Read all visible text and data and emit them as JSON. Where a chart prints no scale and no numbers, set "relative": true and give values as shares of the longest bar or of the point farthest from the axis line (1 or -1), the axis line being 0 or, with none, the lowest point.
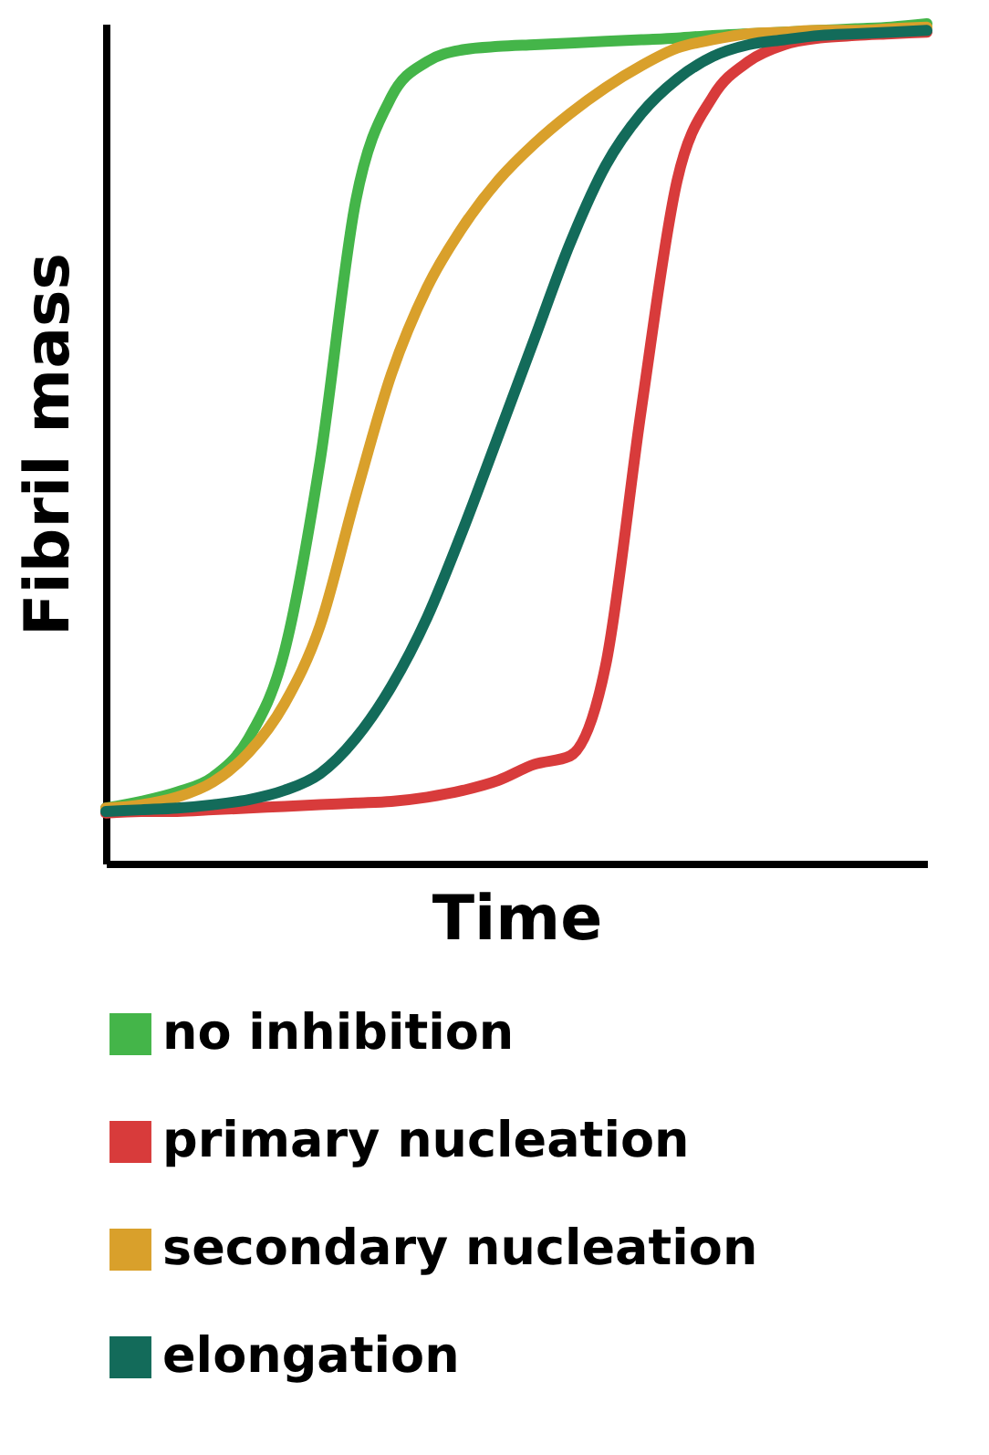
{
  "chart_data": {
    "type": "line",
    "relative": true,
    "xlabel": "Time",
    "ylabel": "Fibril mass",
    "tick_labels": false,
    "legend": "bottom",
    "marker": "none",
    "line_style": "solid",
    "categories": [
      null,
      null,
      null,
      null,
      null,
      null,
      null,
      null,
      null,
      null,
      null,
      null,
      null,
      null,
      null,
      null,
      null,
      null,
      null,
      null,
      null,
      null,
      null,
      null
    ],
    "series": [
      {
        "name": "no inhibition",
        "color": "#44b549",
        "values": [
          0.066,
          0.074,
          0.085,
          0.103,
          0.149,
          0.252,
          0.479,
          0.789,
          0.913,
          0.955,
          0.969,
          0.973,
          0.975,
          0.977,
          0.979,
          0.981,
          0.983,
          0.986,
          0.988,
          0.99,
          0.992,
          0.994,
          0.996,
          1.0
        ]
      },
      {
        "name": "primary nucleation",
        "color": "#d83b3b",
        "values": [
          0.06,
          0.062,
          0.062,
          0.064,
          0.066,
          0.068,
          0.07,
          0.072,
          0.074,
          0.079,
          0.087,
          0.099,
          0.118,
          0.128,
          0.236,
          0.541,
          0.813,
          0.913,
          0.955,
          0.975,
          0.983,
          0.986,
          0.988,
          0.99
        ]
      },
      {
        "name": "secondary nucleation",
        "color": "#d9a02b",
        "values": [
          0.066,
          0.07,
          0.079,
          0.097,
          0.132,
          0.19,
          0.283,
          0.438,
          0.583,
          0.686,
          0.758,
          0.814,
          0.857,
          0.893,
          0.924,
          0.95,
          0.971,
          0.981,
          0.988,
          0.99,
          0.992,
          0.992,
          0.994,
          0.996
        ]
      },
      {
        "name": "elongation",
        "color": "#136b5a",
        "values": [
          0.062,
          0.064,
          0.066,
          0.07,
          0.076,
          0.087,
          0.107,
          0.149,
          0.211,
          0.293,
          0.397,
          0.51,
          0.624,
          0.738,
          0.831,
          0.893,
          0.934,
          0.961,
          0.975,
          0.981,
          0.986,
          0.988,
          0.99,
          0.992
        ]
      }
    ]
  }
}
